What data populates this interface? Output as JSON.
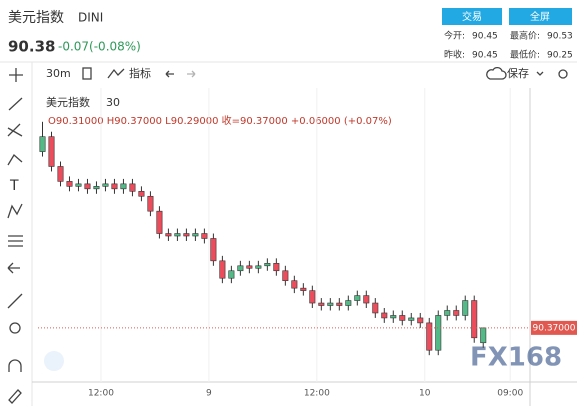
{
  "header": {
    "title": "美元指数",
    "symbol": "DINI",
    "price": "90.38",
    "change": "-0.07(-0.08%)",
    "buttons": [
      "交易",
      "全屏"
    ],
    "stats": [
      [
        "今开:",
        "90.45"
      ],
      [
        "最高价:",
        "90.53"
      ],
      [
        "昨收:",
        "90.45"
      ],
      [
        "最低价:",
        "90.25"
      ]
    ]
  },
  "toolbar": {
    "interval": "30m",
    "indicators": "指标",
    "save": "保存"
  },
  "watermark": "FX168",
  "chart_data": {
    "type": "candlestick",
    "title": "美元指数",
    "interval": "30",
    "ohlc_text": "O90.31000  H90.37000  L90.29000  收=90.37000  +0.06000 (+0.07%)",
    "up_color": "#53b987",
    "down_color": "#eb4d5c",
    "open": [
      91.08,
      91.14,
      91.02,
      90.96,
      90.94,
      90.95,
      90.93,
      90.94,
      90.95,
      90.93,
      90.95,
      90.92,
      90.9,
      90.84,
      90.75,
      90.74,
      90.75,
      90.74,
      90.75,
      90.73,
      90.64,
      90.57,
      90.6,
      90.62,
      90.61,
      90.62,
      90.63,
      90.6,
      90.56,
      90.53,
      90.52,
      90.47,
      90.46,
      90.47,
      90.46,
      90.48,
      90.5,
      90.47,
      90.43,
      90.41,
      90.42,
      90.4,
      90.41,
      90.39,
      90.28,
      90.42,
      90.44,
      90.42,
      90.48,
      90.31
    ],
    "high": [
      91.2,
      91.16,
      91.04,
      90.98,
      90.97,
      90.97,
      90.96,
      90.97,
      90.97,
      90.97,
      90.97,
      90.94,
      90.92,
      90.86,
      90.77,
      90.77,
      90.77,
      90.77,
      90.77,
      90.75,
      90.66,
      90.62,
      90.64,
      90.64,
      90.64,
      90.65,
      90.65,
      90.62,
      90.58,
      90.55,
      90.54,
      90.49,
      90.49,
      90.49,
      90.5,
      90.52,
      90.52,
      90.49,
      90.45,
      90.44,
      90.44,
      90.43,
      90.43,
      90.41,
      90.44,
      90.46,
      90.46,
      90.5,
      90.5,
      90.37
    ],
    "low": [
      91.06,
      91.0,
      90.94,
      90.92,
      90.92,
      90.91,
      90.91,
      90.92,
      90.91,
      90.91,
      90.9,
      90.88,
      90.82,
      90.73,
      90.72,
      90.72,
      90.72,
      90.72,
      90.71,
      90.62,
      90.55,
      90.55,
      90.58,
      90.59,
      90.59,
      90.6,
      90.58,
      90.54,
      90.51,
      90.5,
      90.45,
      90.44,
      90.44,
      90.44,
      90.44,
      90.46,
      90.45,
      90.41,
      90.39,
      90.39,
      90.38,
      90.38,
      90.37,
      90.26,
      90.26,
      90.4,
      90.4,
      90.4,
      90.31,
      90.29
    ],
    "close": [
      91.14,
      91.02,
      90.96,
      90.94,
      90.95,
      90.93,
      90.94,
      90.95,
      90.93,
      90.95,
      90.92,
      90.9,
      90.84,
      90.75,
      90.74,
      90.75,
      90.74,
      90.75,
      90.73,
      90.64,
      90.57,
      90.6,
      90.62,
      90.61,
      90.62,
      90.63,
      90.6,
      90.56,
      90.53,
      90.52,
      90.47,
      90.46,
      90.47,
      90.46,
      90.48,
      90.5,
      90.47,
      90.43,
      90.41,
      90.42,
      90.4,
      90.41,
      90.39,
      90.28,
      90.42,
      90.44,
      90.42,
      90.48,
      90.33,
      90.37
    ],
    "xlim": [
      -0.5,
      54.2
    ],
    "xticks": [
      {
        "value": 6.5,
        "label": "12:00"
      },
      {
        "value": 18.5,
        "label": "9"
      },
      {
        "value": 30.5,
        "label": "12:00"
      },
      {
        "value": 42.5,
        "label": "10"
      },
      {
        "value": 52,
        "label": "09:00"
      }
    ],
    "ylim": [
      90.16,
      91.32
    ],
    "last_price": {
      "value": 90.37,
      "label": "90.37000"
    },
    "last_price_color": "#e0584f"
  }
}
